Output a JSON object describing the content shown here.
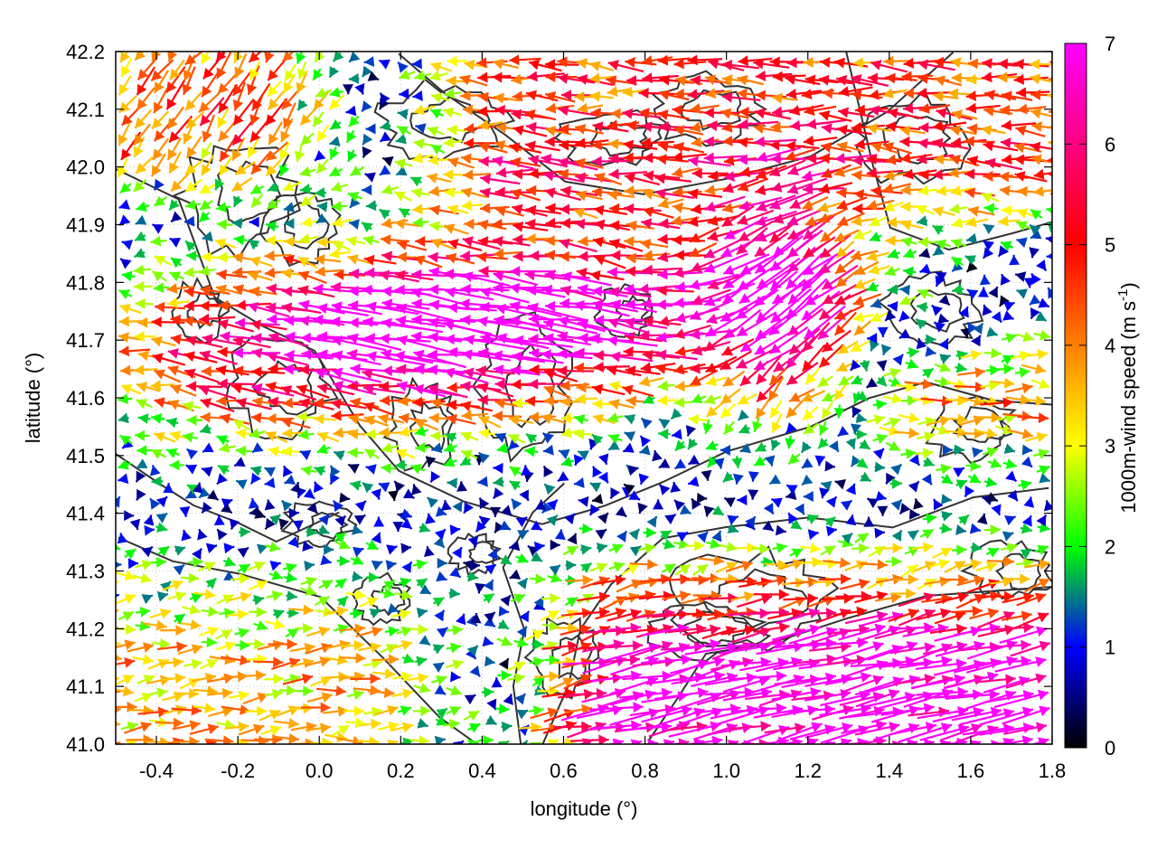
{
  "chart_data": {
    "type": "vector-field",
    "xlabel": "longitude (°)",
    "ylabel": "latitude (°)",
    "xlim": [
      -0.5,
      1.8
    ],
    "ylim": [
      41.0,
      42.2
    ],
    "xticks": [
      "-0.4",
      "-0.2",
      "0.0",
      "0.2",
      "0.4",
      "0.6",
      "0.8",
      "1.0",
      "1.2",
      "1.4",
      "1.6",
      "1.8"
    ],
    "yticks": [
      "41.0",
      "41.1",
      "41.2",
      "41.3",
      "41.4",
      "41.5",
      "41.6",
      "41.7",
      "41.8",
      "41.9",
      "42.0",
      "42.1",
      "42.2"
    ],
    "grid": true,
    "colorbar": {
      "label": "1000m-wind speed (m s-1)",
      "label_main": "1000m-wind speed (m s",
      "label_sup": "-1",
      "label_end": ")",
      "range": [
        0,
        7
      ],
      "ticks": [
        "0",
        "1",
        "2",
        "3",
        "4",
        "5",
        "6",
        "7"
      ],
      "colors": [
        "#000000",
        "#0000ff",
        "#00ff00",
        "#ffff00",
        "#ff8000",
        "#ff0000",
        "#ff00ff"
      ]
    },
    "contour_color": "#333333",
    "wind_field_regions": [
      {
        "region": "central jet (0.0–1.2°E, 41.5–41.9°N)",
        "direction": "westward",
        "speed": 7
      },
      {
        "region": "northeast (0.2–1.8°E, 41.9–42.2°N)",
        "direction": "westward",
        "speed": 4
      },
      {
        "region": "southeast (0.6–1.8°E, 41.0–41.4°N)",
        "direction": "eastward",
        "speed": 6
      },
      {
        "region": "southwest (-0.5–0.5°E, 41.0–41.5°N)",
        "direction": "eastward",
        "speed": 3
      },
      {
        "region": "northwest (-0.5–0.2°E, 41.9–42.2°N)",
        "direction": "southward",
        "speed": 4
      }
    ]
  }
}
